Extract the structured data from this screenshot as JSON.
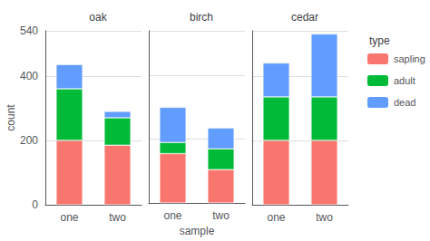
{
  "chart_data": [
    {
      "type": "bar",
      "title": "oak",
      "ylabel": "count",
      "categories": [
        "one",
        "two"
      ],
      "series": [
        {
          "name": "sapling",
          "color": "#F8766D",
          "values": [
            200,
            185
          ]
        },
        {
          "name": "adult",
          "color": "#00BA38",
          "values": [
            160,
            85
          ]
        },
        {
          "name": "dead",
          "color": "#619CFF",
          "values": [
            75,
            20
          ]
        }
      ],
      "ylim": [
        0,
        540
      ],
      "yticks": [
        0,
        200,
        400
      ],
      "stacked": true,
      "grid": true
    },
    {
      "type": "bar",
      "title": "birch",
      "xlabel": "sample",
      "categories": [
        "one",
        "two"
      ],
      "series": [
        {
          "name": "sapling",
          "color": "#F8766D",
          "values": [
            155,
            105
          ]
        },
        {
          "name": "adult",
          "color": "#00BA38",
          "values": [
            35,
            65
          ]
        },
        {
          "name": "dead",
          "color": "#619CFF",
          "values": [
            110,
            65
          ]
        }
      ],
      "ylim": [
        0,
        540
      ],
      "yticks": [
        0,
        200,
        400
      ],
      "stacked": true,
      "grid": true,
      "tick_labels": "x"
    },
    {
      "type": "bar",
      "title": "cedar",
      "categories": [
        "one",
        "two"
      ],
      "series": [
        {
          "name": "sapling",
          "color": "#F8766D",
          "values": [
            200,
            200
          ]
        },
        {
          "name": "adult",
          "color": "#00BA38",
          "values": [
            135,
            135
          ]
        },
        {
          "name": "dead",
          "color": "#619CFF",
          "values": [
            105,
            195
          ]
        }
      ],
      "ylim": [
        0,
        540
      ],
      "yticks": [
        0,
        200,
        400
      ],
      "stacked": true,
      "grid": true,
      "tick_labels": "x",
      "legend": "right",
      "legend_title": "type"
    }
  ]
}
